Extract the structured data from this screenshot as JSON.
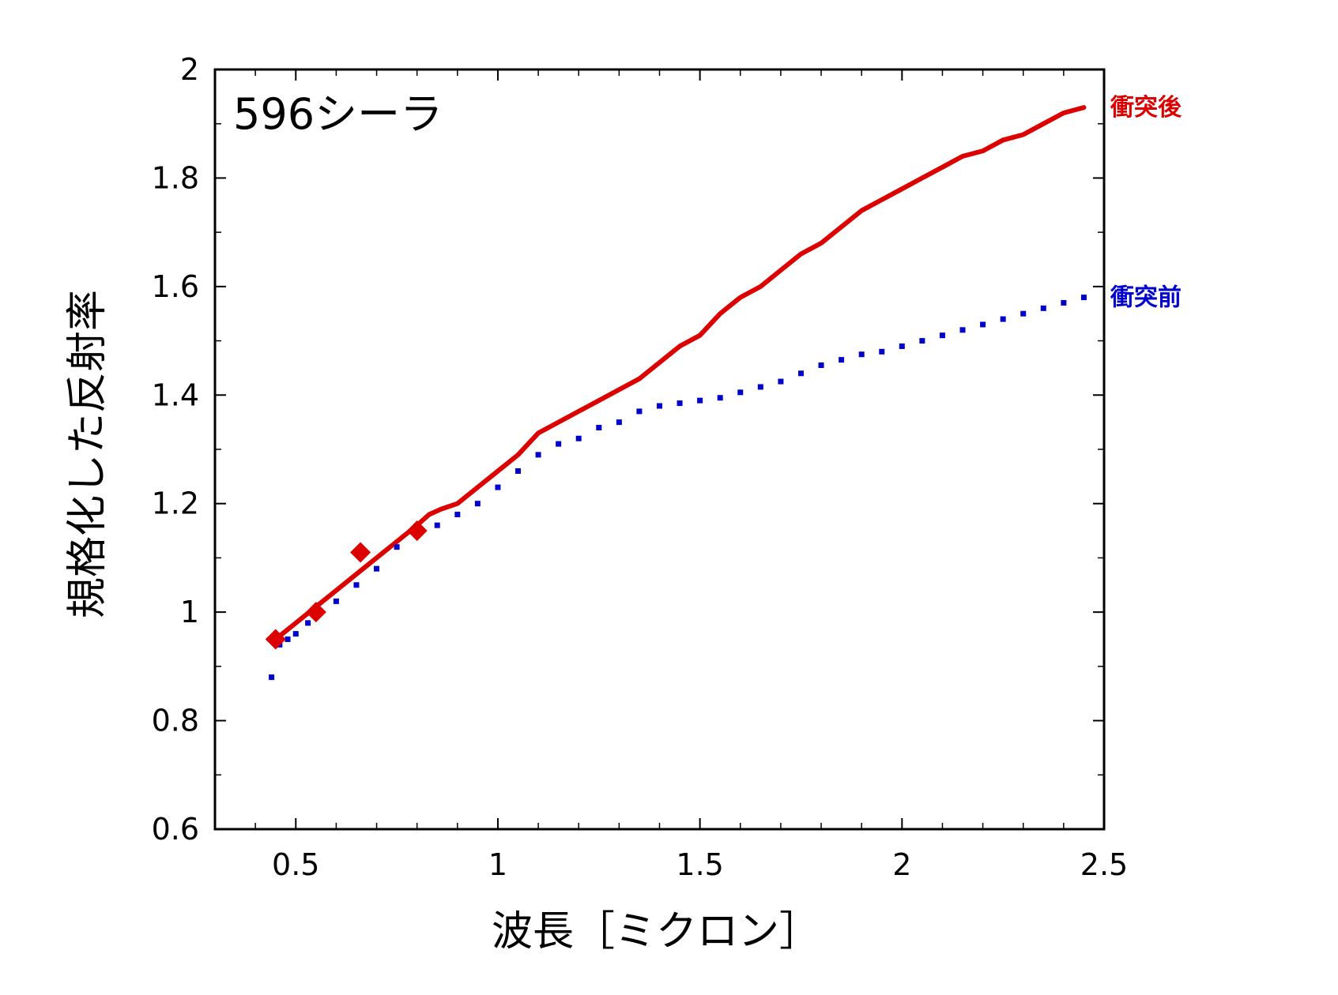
{
  "chart_data": {
    "type": "line",
    "title": "596シーラ",
    "xlabel": "波長［ミクロン］",
    "ylabel": "規格化した反射率",
    "xlim": [
      0.3,
      2.5
    ],
    "ylim": [
      0.6,
      2.0
    ],
    "x_ticks": [
      0.5,
      1,
      1.5,
      2,
      2.5
    ],
    "x_tick_labels": [
      "0.5",
      "1",
      "1.5",
      "2",
      "2.5"
    ],
    "y_ticks": [
      0.6,
      0.8,
      1.0,
      1.2,
      1.4,
      1.6,
      1.8,
      2.0
    ],
    "y_tick_labels": [
      "0.6",
      "0.8",
      "1",
      "1.2",
      "1.4",
      "1.6",
      "1.8",
      "2"
    ],
    "grid": false,
    "series": [
      {
        "name": "衝突後",
        "color": "#dd0000",
        "style": "line",
        "x": [
          0.45,
          0.5,
          0.55,
          0.6,
          0.65,
          0.7,
          0.75,
          0.8,
          0.83,
          0.86,
          0.9,
          0.95,
          1.0,
          1.05,
          1.1,
          1.15,
          1.2,
          1.25,
          1.3,
          1.35,
          1.4,
          1.45,
          1.5,
          1.55,
          1.6,
          1.65,
          1.7,
          1.75,
          1.8,
          1.85,
          1.9,
          1.95,
          2.0,
          2.05,
          2.1,
          2.15,
          2.2,
          2.25,
          2.3,
          2.35,
          2.4,
          2.45
        ],
        "y": [
          0.95,
          0.98,
          1.01,
          1.04,
          1.07,
          1.1,
          1.13,
          1.16,
          1.18,
          1.19,
          1.2,
          1.23,
          1.26,
          1.29,
          1.33,
          1.35,
          1.37,
          1.39,
          1.41,
          1.43,
          1.46,
          1.49,
          1.51,
          1.55,
          1.58,
          1.6,
          1.63,
          1.66,
          1.68,
          1.71,
          1.74,
          1.76,
          1.78,
          1.8,
          1.82,
          1.84,
          1.85,
          1.87,
          1.88,
          1.9,
          1.92,
          1.93
        ]
      },
      {
        "name": "衝突前",
        "color": "#0000cc",
        "style": "dots",
        "x": [
          0.44,
          0.46,
          0.48,
          0.5,
          0.53,
          0.56,
          0.6,
          0.65,
          0.7,
          0.75,
          0.8,
          0.85,
          0.9,
          0.95,
          1.0,
          1.05,
          1.1,
          1.15,
          1.2,
          1.25,
          1.3,
          1.35,
          1.4,
          1.45,
          1.5,
          1.55,
          1.6,
          1.65,
          1.7,
          1.75,
          1.8,
          1.85,
          1.9,
          1.95,
          2.0,
          2.05,
          2.1,
          2.15,
          2.2,
          2.25,
          2.3,
          2.35,
          2.4,
          2.45
        ],
        "y": [
          0.88,
          0.94,
          0.95,
          0.96,
          0.98,
          1.0,
          1.02,
          1.05,
          1.08,
          1.12,
          1.15,
          1.16,
          1.18,
          1.2,
          1.23,
          1.26,
          1.29,
          1.31,
          1.32,
          1.34,
          1.35,
          1.37,
          1.38,
          1.385,
          1.39,
          1.395,
          1.405,
          1.415,
          1.425,
          1.44,
          1.455,
          1.465,
          1.475,
          1.48,
          1.49,
          1.5,
          1.51,
          1.52,
          1.53,
          1.54,
          1.55,
          1.56,
          1.57,
          1.58
        ]
      },
      {
        "name": "",
        "color": "#dd0000",
        "style": "diamond",
        "x": [
          0.45,
          0.55,
          0.66,
          0.8
        ],
        "y": [
          0.95,
          1.0,
          1.11,
          1.15
        ]
      }
    ]
  }
}
